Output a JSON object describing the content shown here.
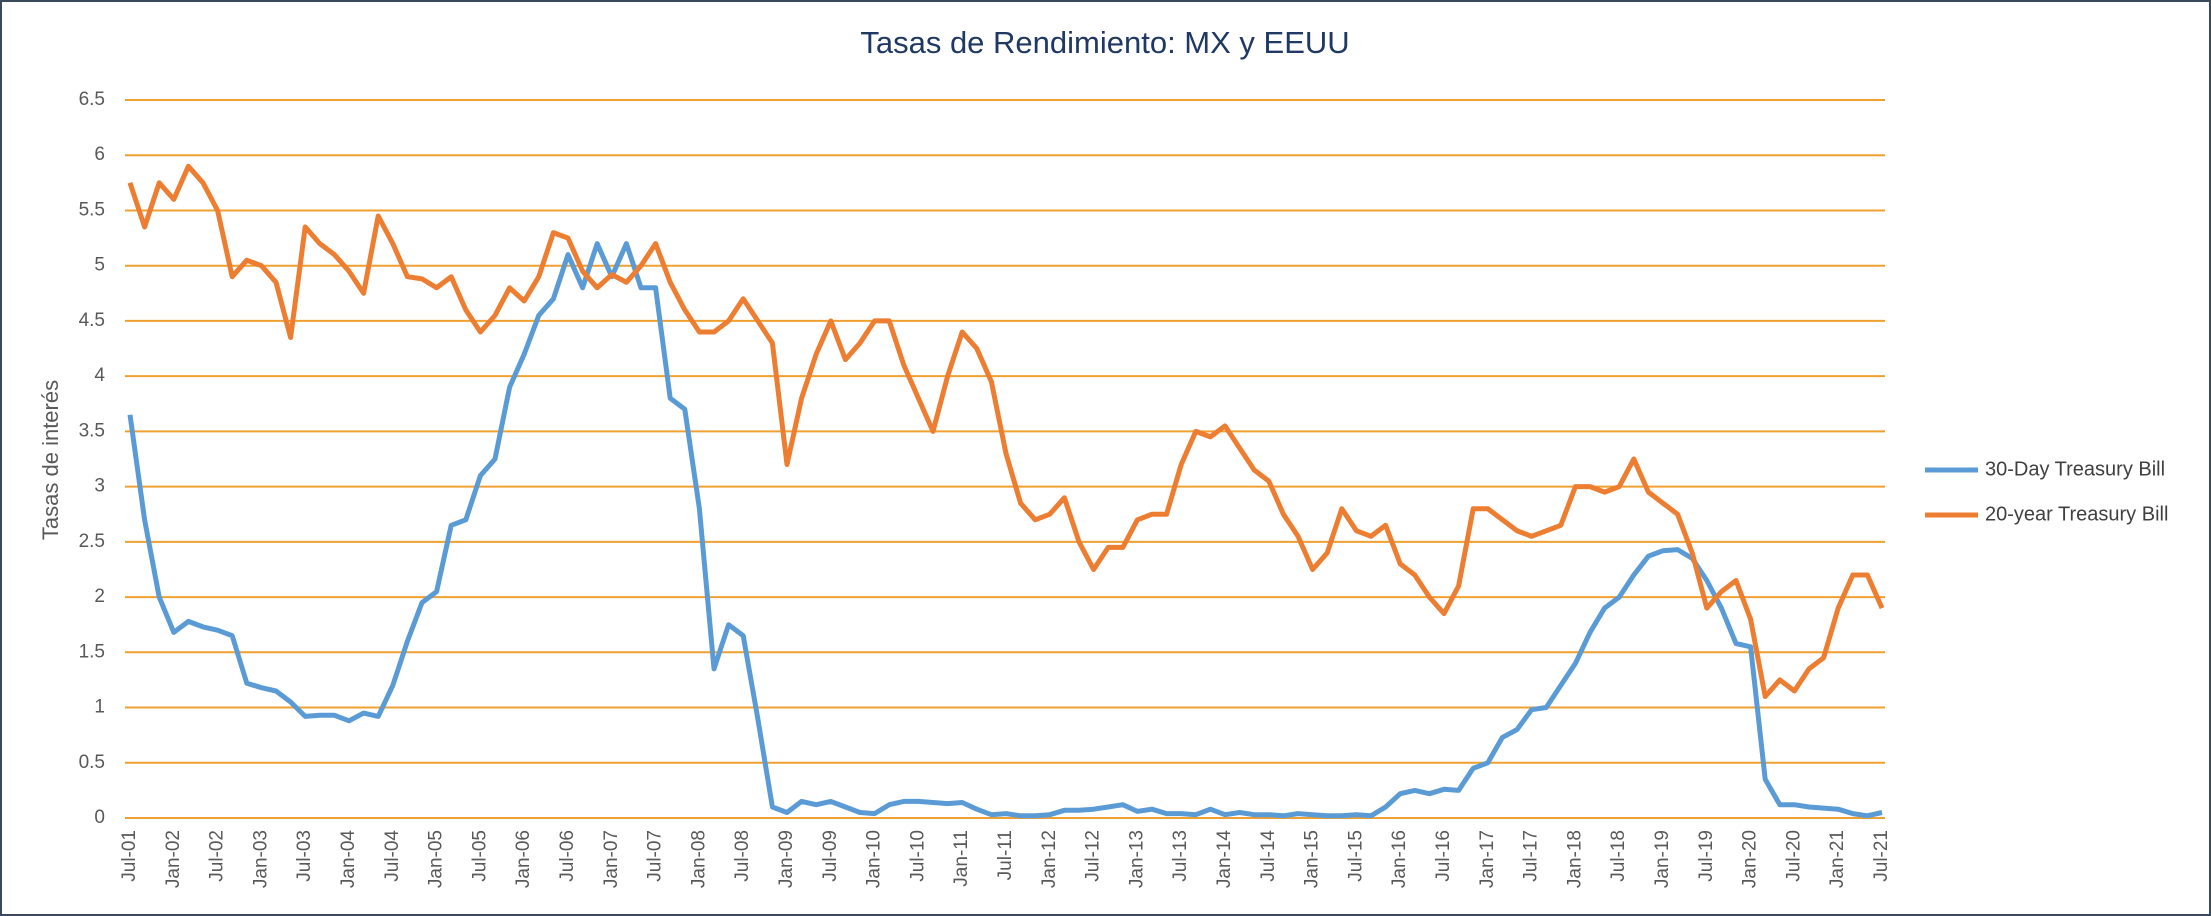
{
  "chart_data": {
    "type": "line",
    "title": "Tasas de Rendimiento: MX y EEUU",
    "y_label": "Tasas de interés",
    "categories": [
      "Jul-01",
      null,
      null,
      "Jan-02",
      null,
      null,
      "Jul-02",
      null,
      null,
      "Jan-03",
      null,
      null,
      "Jul-03",
      null,
      null,
      "Jan-04",
      null,
      null,
      "Jul-04",
      null,
      null,
      "Jan-05",
      null,
      null,
      "Jul-05",
      null,
      null,
      "Jan-06",
      null,
      null,
      "Jul-06",
      null,
      null,
      "Jan-07",
      null,
      null,
      "Jul-07",
      null,
      null,
      "Jan-08",
      null,
      null,
      "Jul-08",
      null,
      null,
      "Jan-09",
      null,
      null,
      "Jul-09",
      null,
      null,
      "Jan-10",
      null,
      null,
      "Jul-10",
      null,
      null,
      "Jan-11",
      null,
      null,
      "Jul-11",
      null,
      null,
      "Jan-12",
      null,
      null,
      "Jul-12",
      null,
      null,
      "Jan-13",
      null,
      null,
      "Jul-13",
      null,
      null,
      "Jan-14",
      null,
      null,
      "Jul-14",
      null,
      null,
      "Jan-15",
      null,
      null,
      "Jul-15",
      null,
      null,
      "Jan-16",
      null,
      null,
      "Jul-16",
      null,
      null,
      "Jan-17",
      null,
      null,
      "Jul-17",
      null,
      null,
      "Jan-18",
      null,
      null,
      "Jul-18",
      null,
      null,
      "Jan-19",
      null,
      null,
      "Jul-19",
      null,
      null,
      "Jan-20",
      null,
      null,
      "Jul-20",
      null,
      null,
      "Jan-21",
      null,
      null,
      "Jul-21"
    ],
    "series": [
      {
        "name": "30-Day Treasury Bill",
        "color": "#5b9bd5",
        "values": [
          3.65,
          2.7,
          2.0,
          1.68,
          1.78,
          1.73,
          1.7,
          1.65,
          1.22,
          1.18,
          1.15,
          1.05,
          0.92,
          0.93,
          0.93,
          0.88,
          0.95,
          0.92,
          1.2,
          1.6,
          1.95,
          2.05,
          2.65,
          2.7,
          3.1,
          3.25,
          3.9,
          4.2,
          4.55,
          4.7,
          5.1,
          4.8,
          5.2,
          4.9,
          5.2,
          4.8,
          4.8,
          3.8,
          3.7,
          2.8,
          1.35,
          1.75,
          1.65,
          0.9,
          0.1,
          0.05,
          0.15,
          0.12,
          0.15,
          0.1,
          0.05,
          0.04,
          0.12,
          0.15,
          0.15,
          0.14,
          0.13,
          0.14,
          0.08,
          0.03,
          0.04,
          0.02,
          0.02,
          0.03,
          0.07,
          0.07,
          0.08,
          0.1,
          0.12,
          0.06,
          0.08,
          0.04,
          0.04,
          0.03,
          0.08,
          0.03,
          0.05,
          0.03,
          0.03,
          0.02,
          0.04,
          0.03,
          0.02,
          0.02,
          0.03,
          0.02,
          0.1,
          0.22,
          0.25,
          0.22,
          0.26,
          0.25,
          0.45,
          0.5,
          0.73,
          0.8,
          0.98,
          1.0,
          1.2,
          1.4,
          1.68,
          1.9,
          2.0,
          2.2,
          2.37,
          2.42,
          2.43,
          2.35,
          2.15,
          1.9,
          1.58,
          1.55,
          0.35,
          0.12,
          0.12,
          0.1,
          0.09,
          0.08,
          0.04,
          0.02,
          0.05
        ]
      },
      {
        "name": "20-year Treasury Bill",
        "color": "#ed7d31",
        "values": [
          5.75,
          5.35,
          5.75,
          5.6,
          5.9,
          5.75,
          5.5,
          4.9,
          5.05,
          5.0,
          4.85,
          4.35,
          5.35,
          5.2,
          5.1,
          4.95,
          4.75,
          5.45,
          5.2,
          4.9,
          4.88,
          4.8,
          4.9,
          4.6,
          4.4,
          4.55,
          4.8,
          4.68,
          4.9,
          5.3,
          5.25,
          4.95,
          4.8,
          4.92,
          4.85,
          5.0,
          5.2,
          4.85,
          4.6,
          4.4,
          4.4,
          4.5,
          4.7,
          4.5,
          4.3,
          3.2,
          3.8,
          4.2,
          4.5,
          4.15,
          4.3,
          4.5,
          4.5,
          4.1,
          3.8,
          3.5,
          4.0,
          4.4,
          4.25,
          3.95,
          3.3,
          2.85,
          2.7,
          2.75,
          2.9,
          2.5,
          2.25,
          2.45,
          2.45,
          2.7,
          2.75,
          2.75,
          3.2,
          3.5,
          3.45,
          3.55,
          3.35,
          3.15,
          3.05,
          2.75,
          2.55,
          2.25,
          2.4,
          2.8,
          2.6,
          2.55,
          2.65,
          2.3,
          2.2,
          2.0,
          1.85,
          2.1,
          2.8,
          2.8,
          2.7,
          2.6,
          2.55,
          2.6,
          2.65,
          3.0,
          3.0,
          2.95,
          3.0,
          3.25,
          2.95,
          2.85,
          2.75,
          2.4,
          1.9,
          2.05,
          2.15,
          1.8,
          1.1,
          1.25,
          1.15,
          1.35,
          1.45,
          1.9,
          2.2,
          2.2,
          1.9
        ]
      }
    ],
    "ylim": [
      0,
      6.5
    ],
    "yticks": [
      0,
      0.5,
      1,
      1.5,
      2,
      2.5,
      3,
      3.5,
      4,
      4.5,
      5,
      5.5,
      6,
      6.5
    ],
    "grid": true,
    "grid_color": "#f0a030",
    "legend": "right"
  }
}
